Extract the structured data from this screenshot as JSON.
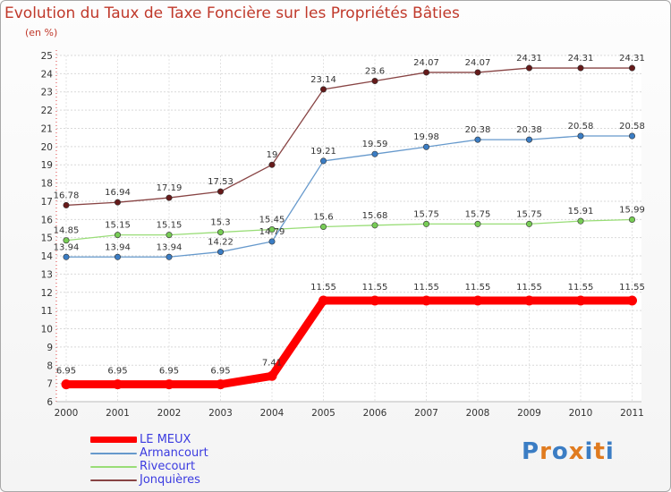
{
  "page": {
    "title": "Evolution du Taux de Taxe Foncière sur les Propriétés Bâties",
    "subtitle": "(en %)"
  },
  "chart_data": {
    "type": "line",
    "title": "Evolution du Taux de Taxe Foncière sur les Propriétés Bâties",
    "ylabel": "(en %)",
    "xlabel": "",
    "categories": [
      "2000",
      "2001",
      "2002",
      "2003",
      "2004",
      "2005",
      "2006",
      "2007",
      "2008",
      "2009",
      "2010",
      "2011"
    ],
    "ylim": [
      6,
      25
    ],
    "yticks": [
      6,
      7,
      8,
      9,
      10,
      11,
      12,
      13,
      14,
      15,
      16,
      17,
      18,
      19,
      20,
      21,
      22,
      23,
      24,
      25
    ],
    "grid": true,
    "series": [
      {
        "name": "LE MEUX",
        "color": "#ff0000",
        "values": [
          6.95,
          6.95,
          6.95,
          6.95,
          7.41,
          11.55,
          11.55,
          11.55,
          11.55,
          11.55,
          11.55,
          11.55
        ],
        "labels": [
          "6.95",
          "6.95",
          "6.95",
          "6.95",
          "7.41",
          "11.55",
          "11.55",
          "11.55",
          "11.55",
          "11.55",
          "11.55",
          "11.55"
        ]
      },
      {
        "name": "Armancourt",
        "color": "#6699cc",
        "marker": "#3b7dc4",
        "values": [
          13.94,
          13.94,
          13.94,
          14.22,
          14.79,
          19.21,
          19.59,
          19.98,
          20.38,
          20.38,
          20.58,
          20.58
        ],
        "labels": [
          "13.94",
          "13.94",
          "13.94",
          "14.22",
          "14.79",
          "19.21",
          "19.59",
          "19.98",
          "20.38",
          "20.38",
          "20.58",
          "20.58"
        ]
      },
      {
        "name": "Rivecourt",
        "color": "#99dd77",
        "marker": "#77cc55",
        "values": [
          14.85,
          15.15,
          15.15,
          15.3,
          15.45,
          15.6,
          15.68,
          15.75,
          15.75,
          15.75,
          15.91,
          15.99
        ],
        "labels": [
          "14.85",
          "15.15",
          "15.15",
          "15.3",
          "15.45",
          "15.6",
          "15.68",
          "15.75",
          "15.75",
          "15.75",
          "15.91",
          "15.99"
        ]
      },
      {
        "name": "Jonquières",
        "color": "#884444",
        "marker": "#661a1a",
        "values": [
          16.78,
          16.94,
          17.19,
          17.53,
          19,
          23.14,
          23.6,
          24.07,
          24.07,
          24.31,
          24.31,
          24.31
        ],
        "labels": [
          "16.78",
          "16.94",
          "17.19",
          "17.53",
          "19",
          "23.14",
          "23.6",
          "24.07",
          "24.07",
          "24.31",
          "24.31",
          "24.31"
        ]
      }
    ]
  },
  "legend": {
    "items": [
      {
        "label": "LE MEUX",
        "color": "#ff0000"
      },
      {
        "label": "Armancourt",
        "color": "#6699cc"
      },
      {
        "label": "Rivecourt",
        "color": "#99dd77"
      },
      {
        "label": "Jonquières",
        "color": "#884444"
      }
    ]
  },
  "logo": {
    "text": "Proxiti",
    "colors": [
      "#3b7dc4",
      "#e07b1f",
      "#3b7dc4",
      "#e07b1f",
      "#3b7dc4",
      "#e07b1f",
      "#3b7dc4"
    ]
  }
}
